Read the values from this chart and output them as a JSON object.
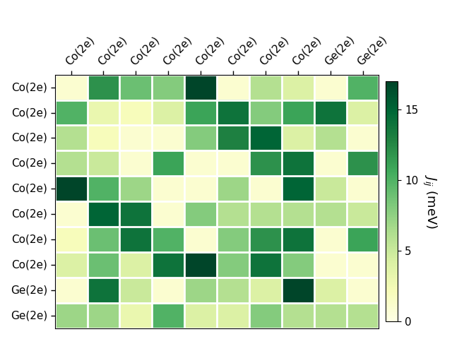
{
  "labels": [
    "Co(2e)",
    "Co(2e)",
    "Co(2e)",
    "Co(2e)",
    "Co(2e)",
    "Co(2e)",
    "Co(2e)",
    "Co(2e)",
    "Ge(2e)",
    "Ge(2e)"
  ],
  "matrix": [
    [
      1,
      12,
      9,
      8,
      17,
      1,
      6,
      4,
      1,
      10
    ],
    [
      10,
      3,
      2,
      4,
      11,
      14,
      8,
      11,
      14,
      4
    ],
    [
      6,
      2,
      1,
      1,
      8,
      13,
      15,
      4,
      6,
      1
    ],
    [
      6,
      5,
      1,
      11,
      1,
      1,
      12,
      14,
      1,
      12
    ],
    [
      17,
      10,
      7,
      1,
      1,
      7,
      1,
      15,
      5,
      1
    ],
    [
      1,
      15,
      14,
      1,
      8,
      6,
      6,
      6,
      6,
      5
    ],
    [
      2,
      9,
      14,
      10,
      1,
      8,
      12,
      14,
      1,
      11
    ],
    [
      4,
      9,
      4,
      14,
      17,
      8,
      14,
      8,
      1,
      1
    ],
    [
      1,
      14,
      5,
      1,
      7,
      6,
      4,
      17,
      4,
      1
    ],
    [
      7,
      7,
      3,
      10,
      4,
      4,
      8,
      6,
      6,
      6
    ]
  ],
  "vmin": 0,
  "vmax": 17,
  "cmap": "YlGn",
  "colorbar_label": "$J_{ij}$ (meV)",
  "colorbar_ticks": [
    0,
    5,
    10,
    15
  ],
  "figsize": [
    6.4,
    4.8
  ],
  "dpi": 100
}
